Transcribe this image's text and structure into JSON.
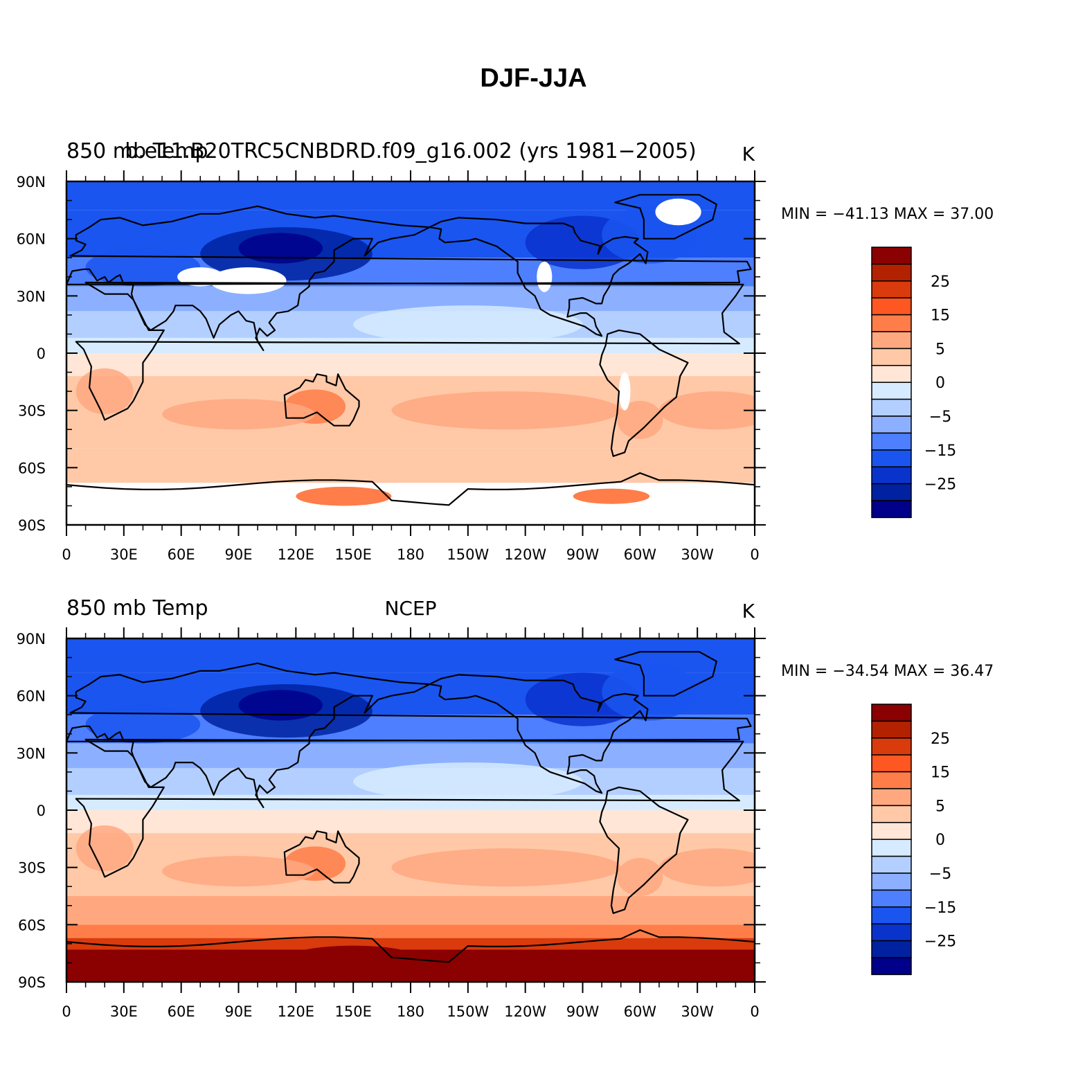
{
  "title": "DJF-JJA",
  "colorbar": {
    "labels": [
      "25",
      "15",
      "5",
      "0",
      "−5",
      "−15",
      "−25"
    ],
    "colors_top_to_bottom": [
      "#8b0000",
      "#b32200",
      "#d93b0d",
      "#ff5722",
      "#ff7d49",
      "#ffa880",
      "#ffc9a8",
      "#ffe6d6",
      "#d6ebff",
      "#b3cfff",
      "#8cb0ff",
      "#4d7fff",
      "#1a55f0",
      "#0a33cc",
      "#0022a0",
      "#00008b"
    ]
  },
  "lat_labels": [
    "90N",
    "60N",
    "30N",
    "0",
    "30S",
    "60S",
    "90S"
  ],
  "lon_labels": [
    "0",
    "30E",
    "60E",
    "90E",
    "120E",
    "150E",
    "180",
    "150W",
    "120W",
    "90W",
    "60W",
    "30W",
    "0"
  ],
  "panels": [
    {
      "left_title": "850 mb Temp",
      "center_title": "b.e11.B20TRC5CNBDRD.f09_g16.002 (yrs 1981−2005)",
      "units": "K",
      "stats": "MIN = −41.13 MAX =  37.00"
    },
    {
      "left_title": "850 mb Temp",
      "center_title": "NCEP",
      "units": "K",
      "stats": "MIN = −34.54 MAX =  36.47"
    }
  ]
}
